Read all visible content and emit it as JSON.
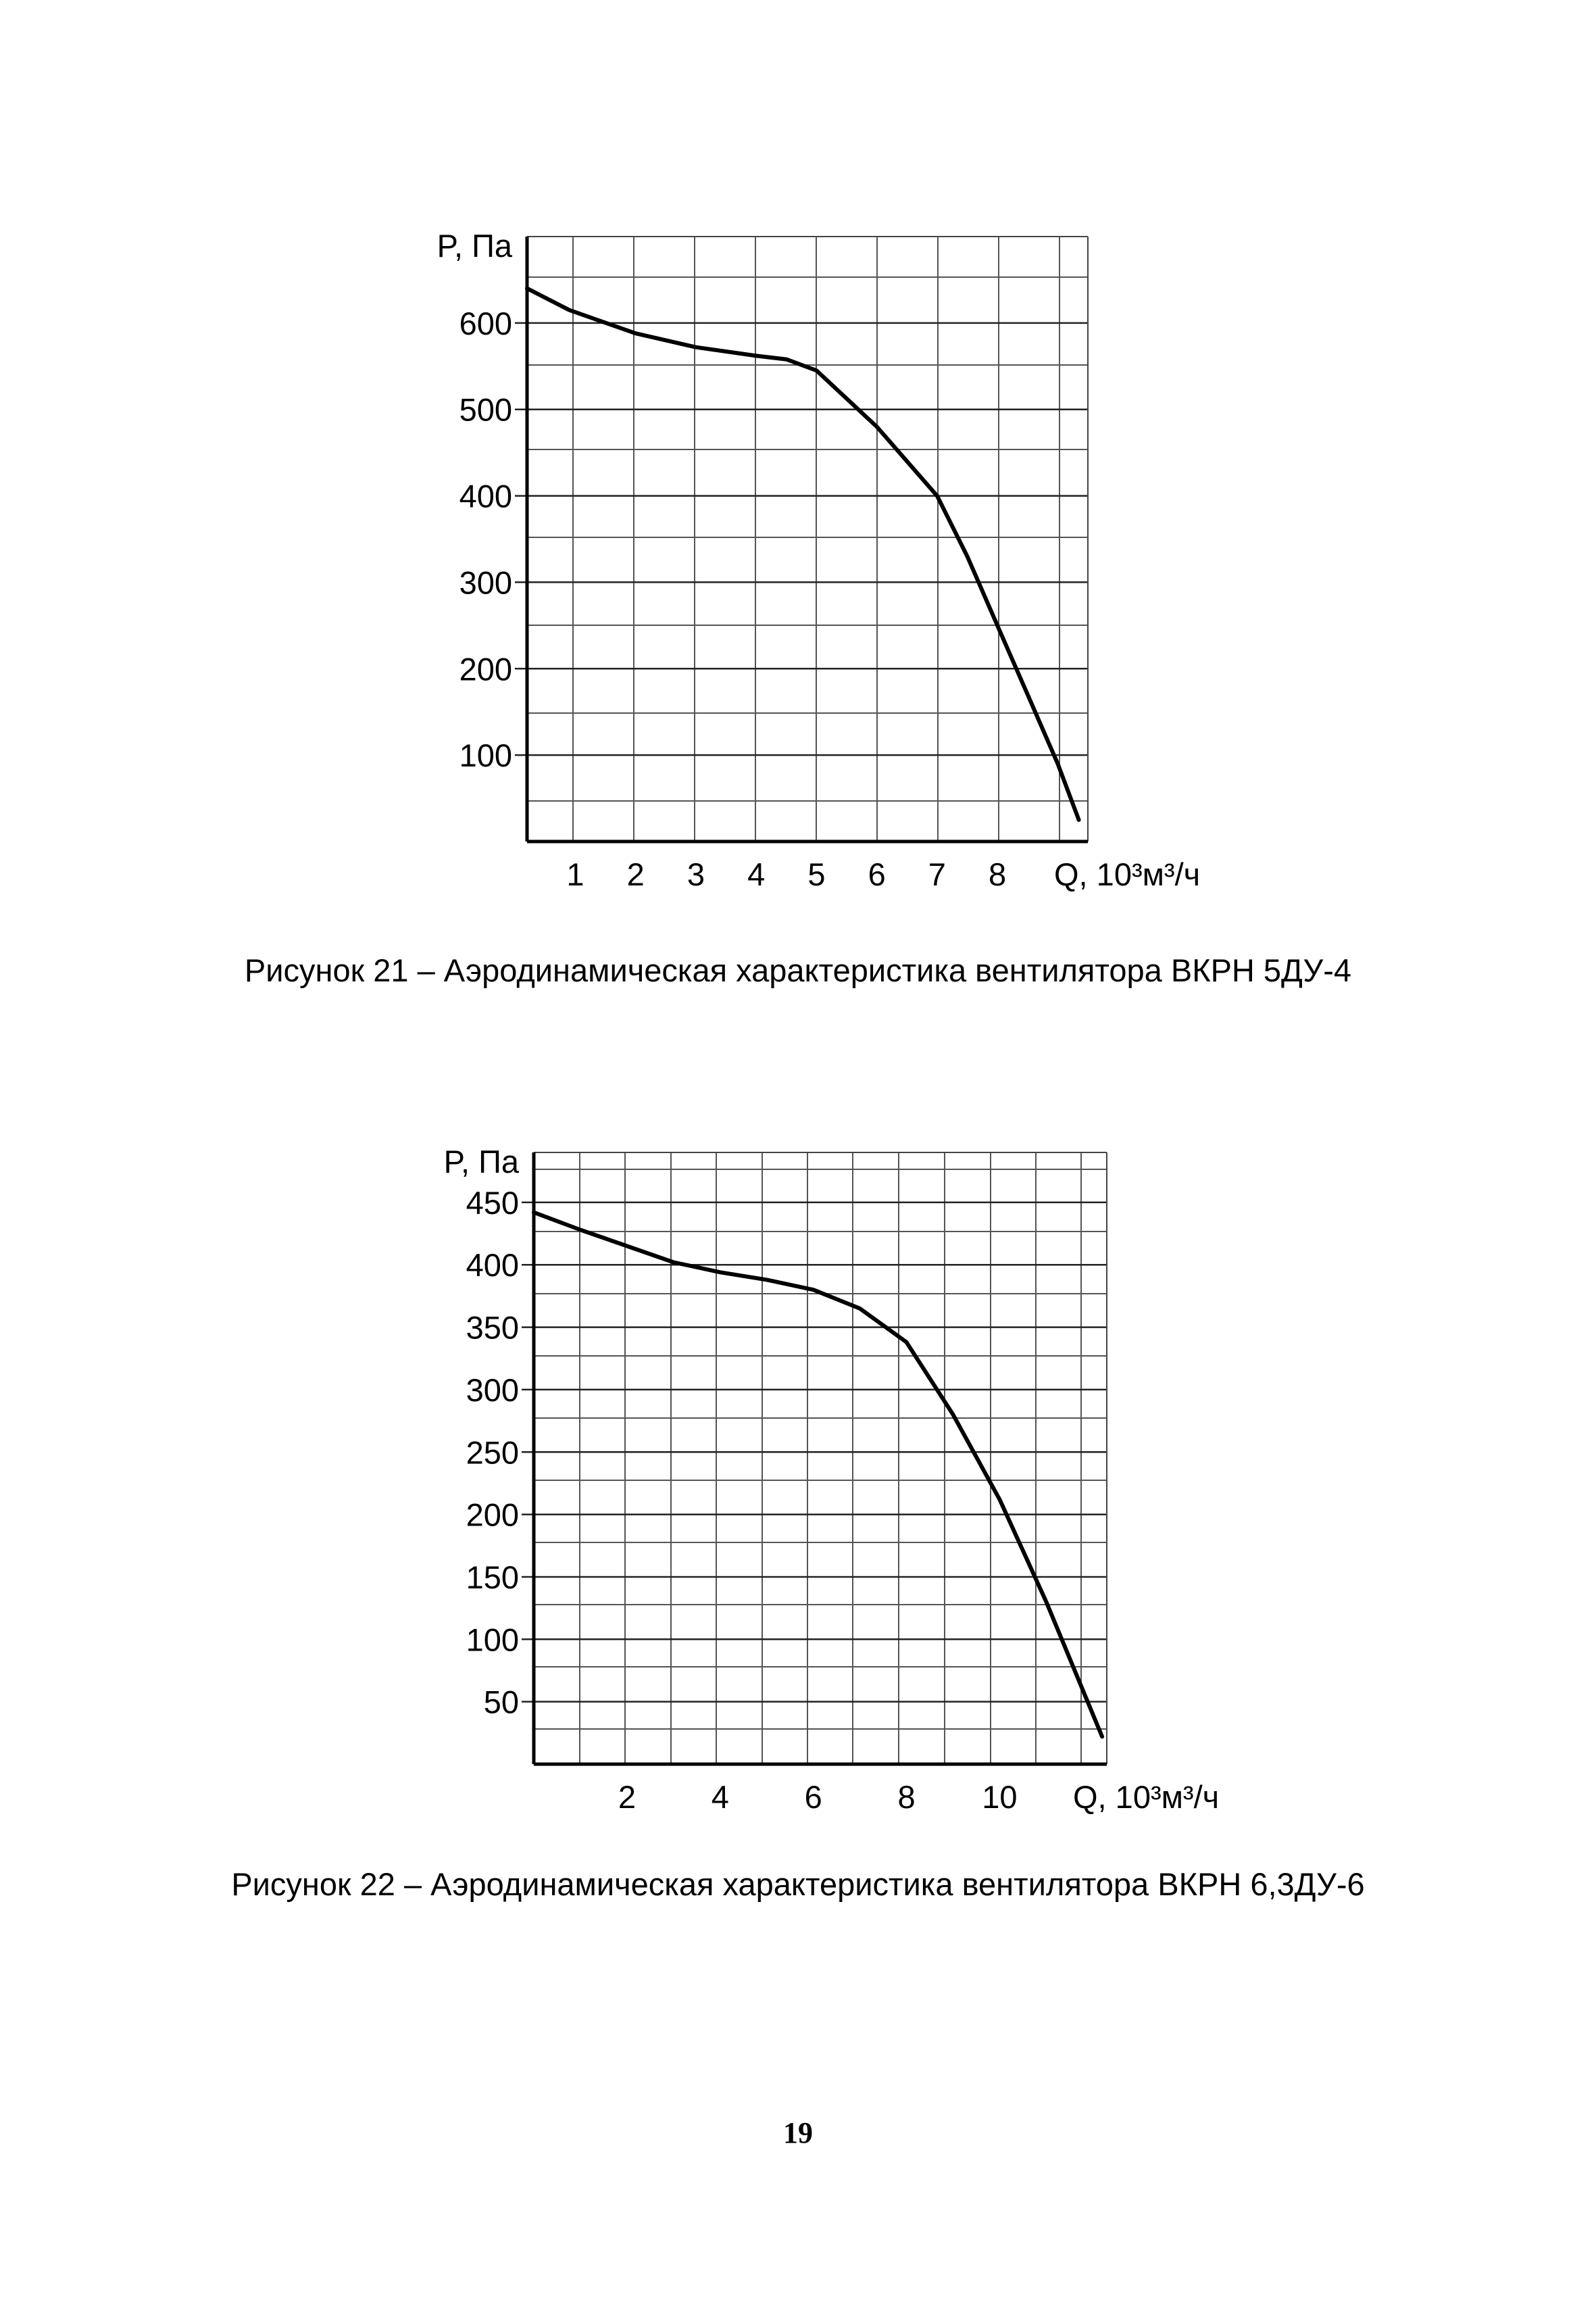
{
  "chart_data": [
    {
      "type": "line",
      "ylabel": "P, Па",
      "xlabel": "Q, 10³м³/ч",
      "y_ticks": [
        100,
        200,
        300,
        400,
        500,
        600
      ],
      "x_ticks": [
        1,
        2,
        3,
        4,
        5,
        6,
        7,
        8
      ],
      "xlim": [
        0.2,
        9.5
      ],
      "ylim": [
        0,
        700
      ],
      "grid": true,
      "series": [
        {
          "x": [
            0.2,
            0.9,
            2.0,
            3.0,
            4.0,
            4.5,
            5.0,
            6.0,
            7.0,
            7.5,
            8.0,
            8.5,
            9.0,
            9.35
          ],
          "y": [
            640,
            615,
            588,
            572,
            562,
            558,
            545,
            480,
            400,
            330,
            250,
            170,
            90,
            25
          ]
        }
      ],
      "caption": "Рисунок 21 – Аэродинамическая характеристика вентилятора ВКРН 5ДУ-4"
    },
    {
      "type": "line",
      "ylabel": "P, Па",
      "xlabel": "Q, 10³м³/ч",
      "y_ticks": [
        50,
        100,
        150,
        200,
        250,
        300,
        350,
        400,
        450
      ],
      "x_ticks": [
        2,
        4,
        6,
        8,
        10
      ],
      "xlim": [
        0,
        12.3
      ],
      "ylim": [
        0,
        490
      ],
      "grid": true,
      "series": [
        {
          "x": [
            0,
            1,
            2,
            3,
            4,
            5,
            6,
            7,
            8,
            9,
            10,
            11,
            12.2
          ],
          "y": [
            442,
            428,
            415,
            402,
            394,
            388,
            380,
            365,
            338,
            280,
            212,
            130,
            22
          ]
        }
      ],
      "caption": "Рисунок 22 – Аэродинамическая характеристика вентилятора ВКРН 6,3ДУ-6"
    }
  ],
  "page_number": "19"
}
